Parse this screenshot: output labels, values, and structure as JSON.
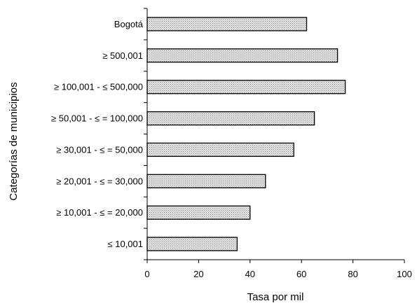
{
  "chart_data": {
    "type": "bar",
    "orientation": "horizontal",
    "title": "",
    "xlabel": "Tasa por mil",
    "ylabel": "Categorías de municipios",
    "categories": [
      "Bogotá",
      "≥ 500,001",
      "≥ 100,001 - ≤ 500,000",
      "≥ 50,001 - ≤ = 100,000",
      "≥ 30,001 - ≤ = 50,000",
      "≥ 20,001 - ≤ = 30,000",
      "≥ 10,001 - ≤ = 20,000",
      "≤ 10,001"
    ],
    "values": [
      62,
      74,
      77,
      65,
      57,
      46,
      40,
      35
    ],
    "xlim": [
      0,
      100
    ],
    "xticks": [
      "0",
      "20",
      "40",
      "60",
      "80",
      "100"
    ],
    "grid": false,
    "legend": "none",
    "bar_color": "#d9d9d9",
    "bar_stroke": "#000000"
  }
}
